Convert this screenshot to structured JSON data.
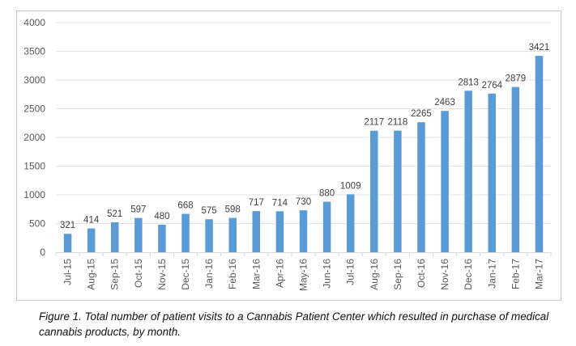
{
  "chart_data": {
    "type": "bar",
    "title": "",
    "xlabel": "",
    "ylabel": "",
    "ylim": [
      0,
      4000
    ],
    "yticks": [
      0,
      500,
      1000,
      1500,
      2000,
      2500,
      3000,
      3500,
      4000
    ],
    "grid": true,
    "legend": "none",
    "bar_color": "#5b9bd5",
    "categories": [
      "Jul-15",
      "Aug-15",
      "Sep-15",
      "Oct-15",
      "Nov-15",
      "Dec-15",
      "Jan-16",
      "Feb-16",
      "Mar-16",
      "Apr-16",
      "May-16",
      "Jun-16",
      "Jul-16",
      "Aug-16",
      "Sep-16",
      "Oct-16",
      "Nov-16",
      "Dec-16",
      "Jan-17",
      "Feb-17",
      "Mar-17"
    ],
    "values": [
      321,
      414,
      521,
      597,
      480,
      668,
      575,
      598,
      717,
      714,
      730,
      880,
      1009,
      2117,
      2118,
      2265,
      2463,
      2813,
      2764,
      2879,
      3421
    ],
    "data_labels": true
  },
  "caption": "Figure 1. Total number of patient visits to a Cannabis Patient Center which resulted in purchase of medical cannabis products, by month."
}
